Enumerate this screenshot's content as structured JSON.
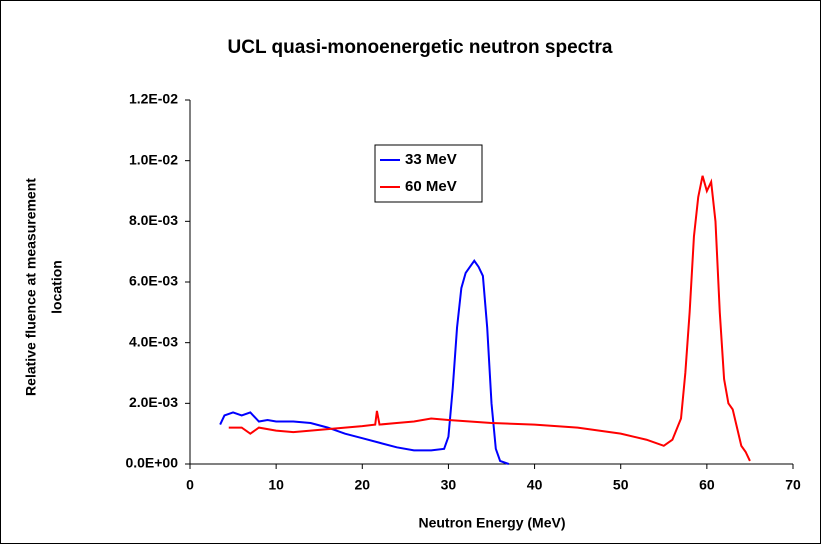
{
  "chart_data": {
    "type": "line",
    "title": "UCL quasi-monoenergetic neutron spectra",
    "xlabel": "Neutron Energy (MeV)",
    "ylabel": [
      "Relative fluence at measurement",
      "location"
    ],
    "xlim": [
      0,
      70
    ],
    "xticks": [
      0,
      10,
      20,
      30,
      40,
      50,
      60,
      70
    ],
    "ylim": [
      0,
      0.012
    ],
    "yticks": [
      {
        "value": 0,
        "label": "0.0E+00"
      },
      {
        "value": 0.002,
        "label": "2.0E-03"
      },
      {
        "value": 0.004,
        "label": "4.0E-03"
      },
      {
        "value": 0.006,
        "label": "6.0E-03"
      },
      {
        "value": 0.008,
        "label": "8.0E-03"
      },
      {
        "value": 0.01,
        "label": "1.0E-02"
      },
      {
        "value": 0.012,
        "label": "1.2E-02"
      }
    ],
    "grid": false,
    "series": [
      {
        "name": "33 MeV",
        "color": "#0000ff",
        "x": [
          3.5,
          4,
          5,
          6,
          7,
          8,
          9,
          10,
          12,
          14,
          16,
          18,
          20,
          22,
          24,
          26,
          28,
          29.5,
          30,
          30.5,
          31,
          31.5,
          32,
          32.5,
          33,
          33.5,
          34,
          34.5,
          35,
          35.5,
          36,
          37
        ],
        "values": [
          0.0013,
          0.0016,
          0.0017,
          0.0016,
          0.0017,
          0.0014,
          0.00145,
          0.0014,
          0.0014,
          0.00135,
          0.0012,
          0.001,
          0.00085,
          0.0007,
          0.00055,
          0.00045,
          0.00045,
          0.0005,
          0.0009,
          0.0025,
          0.0045,
          0.0058,
          0.0063,
          0.0065,
          0.0067,
          0.0065,
          0.0062,
          0.0045,
          0.002,
          0.0005,
          0.0001,
          0
        ]
      },
      {
        "name": "60 MeV",
        "color": "#ff0000",
        "x": [
          4.5,
          6,
          7,
          8,
          10,
          12,
          14,
          16,
          18,
          20,
          21.5,
          21.7,
          22,
          24,
          26,
          28,
          30,
          35,
          40,
          45,
          50,
          53,
          55,
          56,
          57,
          57.5,
          58,
          58.5,
          59,
          59.5,
          60,
          60.5,
          61,
          61.5,
          62,
          62.5,
          63,
          63.5,
          64,
          64.5,
          65
        ],
        "values": [
          0.0012,
          0.0012,
          0.001,
          0.0012,
          0.0011,
          0.00105,
          0.0011,
          0.00115,
          0.0012,
          0.00125,
          0.0013,
          0.00175,
          0.0013,
          0.00135,
          0.0014,
          0.0015,
          0.00145,
          0.00135,
          0.0013,
          0.0012,
          0.001,
          0.0008,
          0.0006,
          0.0008,
          0.0015,
          0.003,
          0.005,
          0.0075,
          0.0088,
          0.0095,
          0.009,
          0.0093,
          0.008,
          0.005,
          0.0028,
          0.002,
          0.0018,
          0.0012,
          0.0006,
          0.0004,
          0.0001
        ]
      }
    ]
  }
}
